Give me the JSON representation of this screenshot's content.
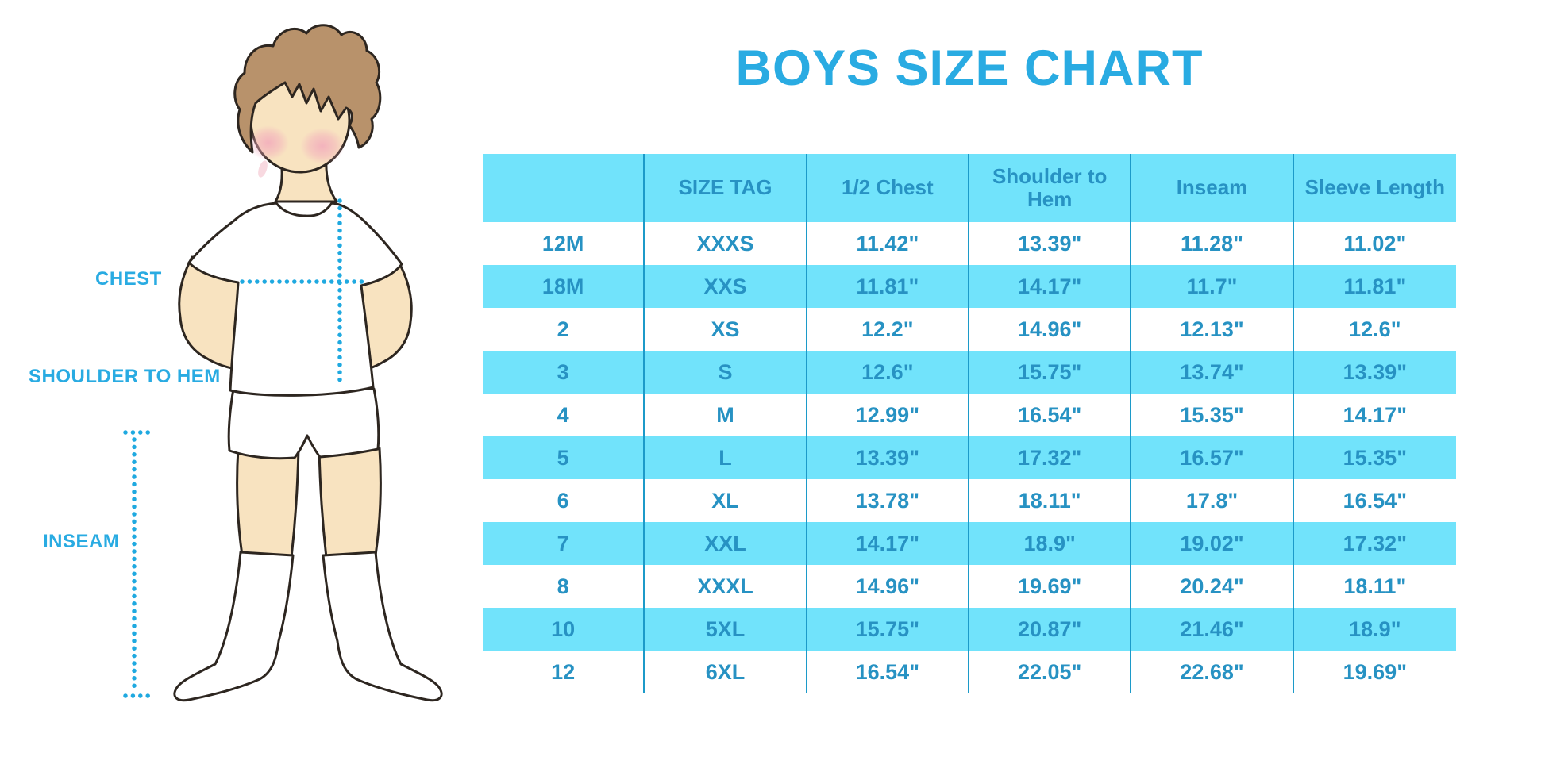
{
  "title": "BOYS SIZE CHART",
  "colors": {
    "accent": "#29ABE2",
    "table_fill": "#71E3FB",
    "table_line": "#1C9AC9",
    "table_text": "#2792C3",
    "dotted_line": "#1FA9E0",
    "skin": "#F8E3C0",
    "hair": "#B8926B",
    "outline": "#2D2620",
    "blush": "#F2AABC",
    "garment": "#FFFFFF"
  },
  "figure_labels": {
    "chest": "CHEST",
    "shoulder_to_hem": "SHOULDER TO HEM",
    "inseam": "INSEAM"
  },
  "chart_data": {
    "type": "table",
    "title": "BOYS SIZE CHART",
    "columns": [
      "",
      "SIZE TAG",
      "1/2 Chest",
      "Shoulder to Hem",
      "Inseam",
      "Sleeve Length"
    ],
    "rows": [
      [
        "12M",
        "XXXS",
        "11.42\"",
        "13.39\"",
        "11.28\"",
        "11.02\""
      ],
      [
        "18M",
        "XXS",
        "11.81\"",
        "14.17\"",
        "11.7\"",
        "11.81\""
      ],
      [
        "2",
        "XS",
        "12.2\"",
        "14.96\"",
        "12.13\"",
        "12.6\""
      ],
      [
        "3",
        "S",
        "12.6\"",
        "15.75\"",
        "13.74\"",
        "13.39\""
      ],
      [
        "4",
        "M",
        "12.99\"",
        "16.54\"",
        "15.35\"",
        "14.17\""
      ],
      [
        "5",
        "L",
        "13.39\"",
        "17.32\"",
        "16.57\"",
        "15.35\""
      ],
      [
        "6",
        "XL",
        "13.78\"",
        "18.11\"",
        "17.8\"",
        "16.54\""
      ],
      [
        "7",
        "XXL",
        "14.17\"",
        "18.9\"",
        "19.02\"",
        "17.32\""
      ],
      [
        "8",
        "XXXL",
        "14.96\"",
        "19.69\"",
        "20.24\"",
        "18.11\""
      ],
      [
        "10",
        "5XL",
        "15.75\"",
        "20.87\"",
        "21.46\"",
        "18.9\""
      ],
      [
        "12",
        "6XL",
        "16.54\"",
        "22.05\"",
        "22.68\"",
        "19.69\""
      ]
    ],
    "units": "inches",
    "layout": {
      "alternating_row_fill": true,
      "first_data_row_fill": "white"
    }
  }
}
